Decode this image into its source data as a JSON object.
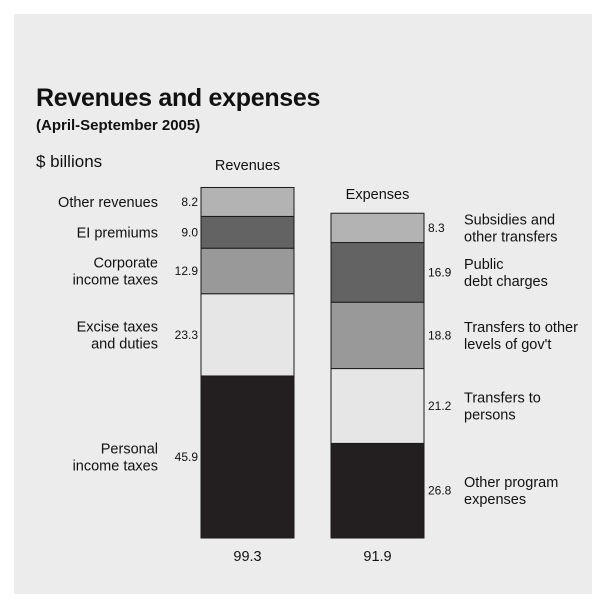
{
  "header": {
    "title": "Revenues and expenses",
    "subtitle": "(April-September 2005)",
    "unit": "$ billions"
  },
  "colors": {
    "background": "#ececec",
    "stroke": "#1a1a1a",
    "text": "#111111"
  },
  "chart_data": {
    "type": "bar",
    "stacked": true,
    "unit": "$ billions",
    "bars": [
      {
        "name": "Revenues",
        "total": "99.3",
        "segments": [
          {
            "label": [
              "Personal",
              "income taxes"
            ],
            "value": 45.9,
            "value_label": "45.9",
            "color": "#231f20"
          },
          {
            "label": [
              "Excise taxes",
              "and duties"
            ],
            "value": 23.3,
            "value_label": "23.3",
            "color": "#e6e6e6"
          },
          {
            "label": [
              "Corporate",
              "income taxes"
            ],
            "value": 12.9,
            "value_label": "12.9",
            "color": "#999999"
          },
          {
            "label": [
              "EI premiums"
            ],
            "value": 9.0,
            "value_label": "9.0",
            "color": "#636363"
          },
          {
            "label": [
              "Other revenues"
            ],
            "value": 8.2,
            "value_label": "8.2",
            "color": "#b3b3b3"
          }
        ]
      },
      {
        "name": "Expenses",
        "total": "91.9",
        "segments": [
          {
            "label": [
              "Other program",
              "expenses"
            ],
            "value": 26.8,
            "value_label": "26.8",
            "color": "#231f20"
          },
          {
            "label": [
              "Transfers to",
              "persons"
            ],
            "value": 21.2,
            "value_label": "21.2",
            "color": "#e6e6e6"
          },
          {
            "label": [
              "Transfers to other",
              "levels of gov't"
            ],
            "value": 18.8,
            "value_label": "18.8",
            "color": "#999999"
          },
          {
            "label": [
              "Public",
              "debt charges"
            ],
            "value": 16.9,
            "value_label": "16.9",
            "color": "#636363"
          },
          {
            "label": [
              "Subsidies and",
              "other transfers"
            ],
            "value": 8.3,
            "value_label": "8.3",
            "color": "#b3b3b3"
          }
        ]
      }
    ]
  }
}
